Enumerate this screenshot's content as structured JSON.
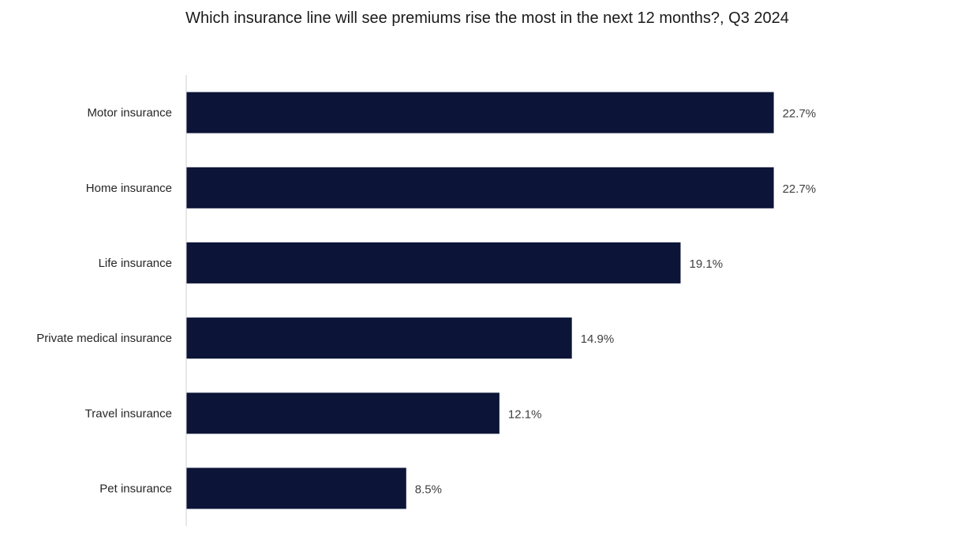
{
  "chart_data": {
    "type": "bar",
    "orientation": "horizontal",
    "title": "Which insurance line will see premiums rise the most in the next 12 months?, Q3 2024",
    "categories": [
      "Motor insurance",
      "Home insurance",
      "Life insurance",
      "Private medical insurance",
      "Travel insurance",
      "Pet insurance"
    ],
    "values": [
      22.7,
      22.7,
      19.1,
      14.9,
      12.1,
      8.5
    ],
    "value_labels": [
      "22.7%",
      "22.7%",
      "19.1%",
      "14.9%",
      "12.1%",
      "8.5%"
    ],
    "unit": "%",
    "xlim": [
      0,
      25
    ],
    "grid": false,
    "legend": "none",
    "bar_color": "#0c1538",
    "axis_color": "#d0d0d0"
  }
}
